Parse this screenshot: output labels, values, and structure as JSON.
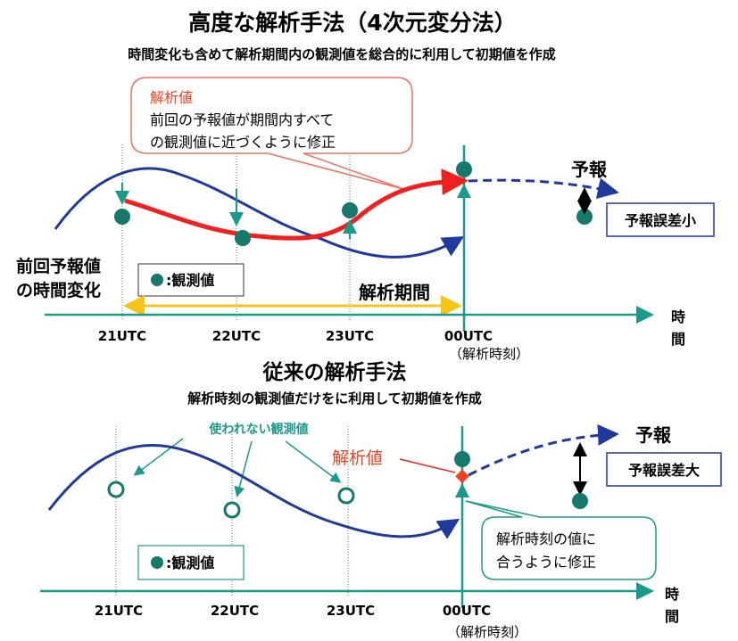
{
  "colors": {
    "teal": "#1a9a8a",
    "obs": "#17786c",
    "blue": "#1f3a9c",
    "red": "#f02020",
    "yellow": "#f5c518",
    "callout_red": "#f07060"
  },
  "top": {
    "title": "高度な解析手法（4次元変分法）",
    "subtitle": "時間変化も含めて解析期間内の観測値を総合的に利用して初期値を作成",
    "callout": {
      "heading": "解析値",
      "line1": "前回の予報値が期間内すべて",
      "line2": "の観測値に近づくように修正"
    },
    "forecast_label": "予報",
    "error_box": "予報誤差小",
    "prev_forecast_line1": "前回予報値",
    "prev_forecast_line2": "の時間変化",
    "legend": ":観測値",
    "period_label": "解析期間",
    "ticks": [
      "21UTC",
      "22UTC",
      "23UTC",
      "00UTC"
    ],
    "analysis_time": "（解析時刻）",
    "axis_label_1": "時",
    "axis_label_2": "間"
  },
  "bottom": {
    "title": "従来の解析手法",
    "subtitle": "解析時刻の観測値だけをに利用して初期値を作成",
    "unused_label": "使われない観測値",
    "analysis_value": "解析値",
    "forecast_label": "予報",
    "error_box": "予報誤差大",
    "callout": {
      "line1": "解析時刻の値に",
      "line2": "合うように修正"
    },
    "legend": ":観測値",
    "ticks": [
      "21UTC",
      "22UTC",
      "23UTC",
      "00UTC"
    ],
    "analysis_time": "（解析時刻）",
    "axis_label_1": "時",
    "axis_label_2": "間"
  }
}
